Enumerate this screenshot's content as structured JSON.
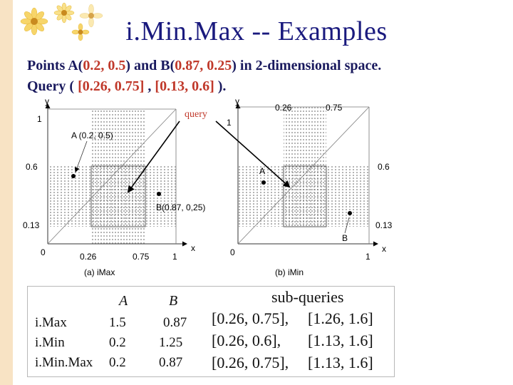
{
  "title": "i.Min.Max -- Examples",
  "subtitle": {
    "line1_pre": "Points A(",
    "line1_a": "0.2, 0.5",
    "line1_mid": ") and B(",
    "line1_b": "0.87, 0.25",
    "line1_post": ") in 2-dimensional space.",
    "line2_pre": "Query ( ",
    "line2_q1": "[0.26, 0.75]",
    "line2_sep": " , ",
    "line2_q2": "[0.13, 0.6]",
    "line2_post": " )."
  },
  "diagram": {
    "query_label": "query",
    "left": {
      "y_axis": "y",
      "x_axis": "x",
      "y_one": "1",
      "y_06": "0.6",
      "y_013": "0.13",
      "origin": "0",
      "x_026": "0.26",
      "x_075": "0.75",
      "x_one": "1",
      "point_a_label": "A (0.2, 0.5)",
      "point_b_label": "B(0.87, 0,25)",
      "caption": "(a) iMax"
    },
    "right": {
      "y_axis": "y",
      "x_axis": "x",
      "y_one": "1",
      "y_06": "0.6",
      "y_013": "0.13",
      "origin": "0",
      "x_026": "0.26",
      "x_075": "0.75",
      "x_one": "1",
      "point_a_label": "A",
      "point_b_label": "B",
      "caption": "(b) iMin"
    }
  },
  "table": {
    "col_a": "A",
    "col_b": "B",
    "col_sub": "sub-queries",
    "rows": [
      {
        "label": "i.Max",
        "a": "1.5",
        "b": "0.87",
        "q1": "[0.26, 0.75],",
        "q2": "[1.26, 1.6]"
      },
      {
        "label": "i.Min",
        "a": "0.2",
        "b": "1.25",
        "q1": "[0.26, 0.6],",
        "q2": "[1.13, 1.6]"
      },
      {
        "label": "i.Min.Max",
        "a": "0.2",
        "b": "0.87",
        "q1": "[0.26, 0.75],",
        "q2": "[1.13, 1.6]"
      }
    ]
  }
}
